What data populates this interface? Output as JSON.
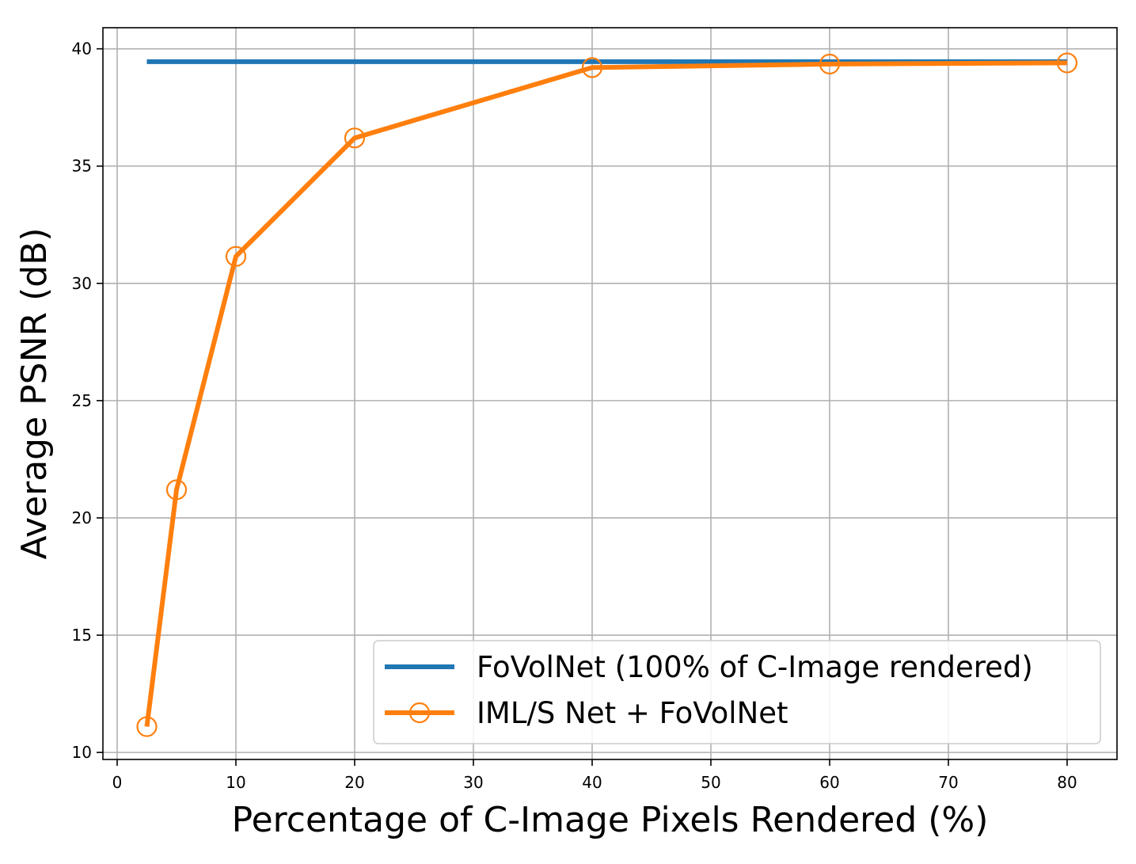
{
  "chart_data": {
    "type": "line",
    "xlabel": "Percentage of C-Image Pixels Rendered (%)",
    "ylabel": "Average PSNR (dB)",
    "xlim": [
      -1.2,
      84.2
    ],
    "ylim": [
      9.7,
      40.9
    ],
    "x_ticks": [
      0,
      10,
      20,
      30,
      40,
      50,
      60,
      70,
      80
    ],
    "y_ticks": [
      10,
      15,
      20,
      25,
      30,
      35,
      40
    ],
    "grid": true,
    "legend_position": "lower-right",
    "series": [
      {
        "name": "FoVolNet (100% of C-Image rendered)",
        "color": "#1f77b4",
        "marker": "none",
        "x": [
          2.5,
          80
        ],
        "y": [
          39.45,
          39.45
        ]
      },
      {
        "name": "IML/S Net + FoVolNet",
        "color": "#ff7f0e",
        "marker": "open-circle",
        "x": [
          2.5,
          5,
          10,
          20,
          40,
          60,
          80
        ],
        "y": [
          11.1,
          21.2,
          31.15,
          36.2,
          39.2,
          39.35,
          39.4
        ]
      }
    ]
  }
}
